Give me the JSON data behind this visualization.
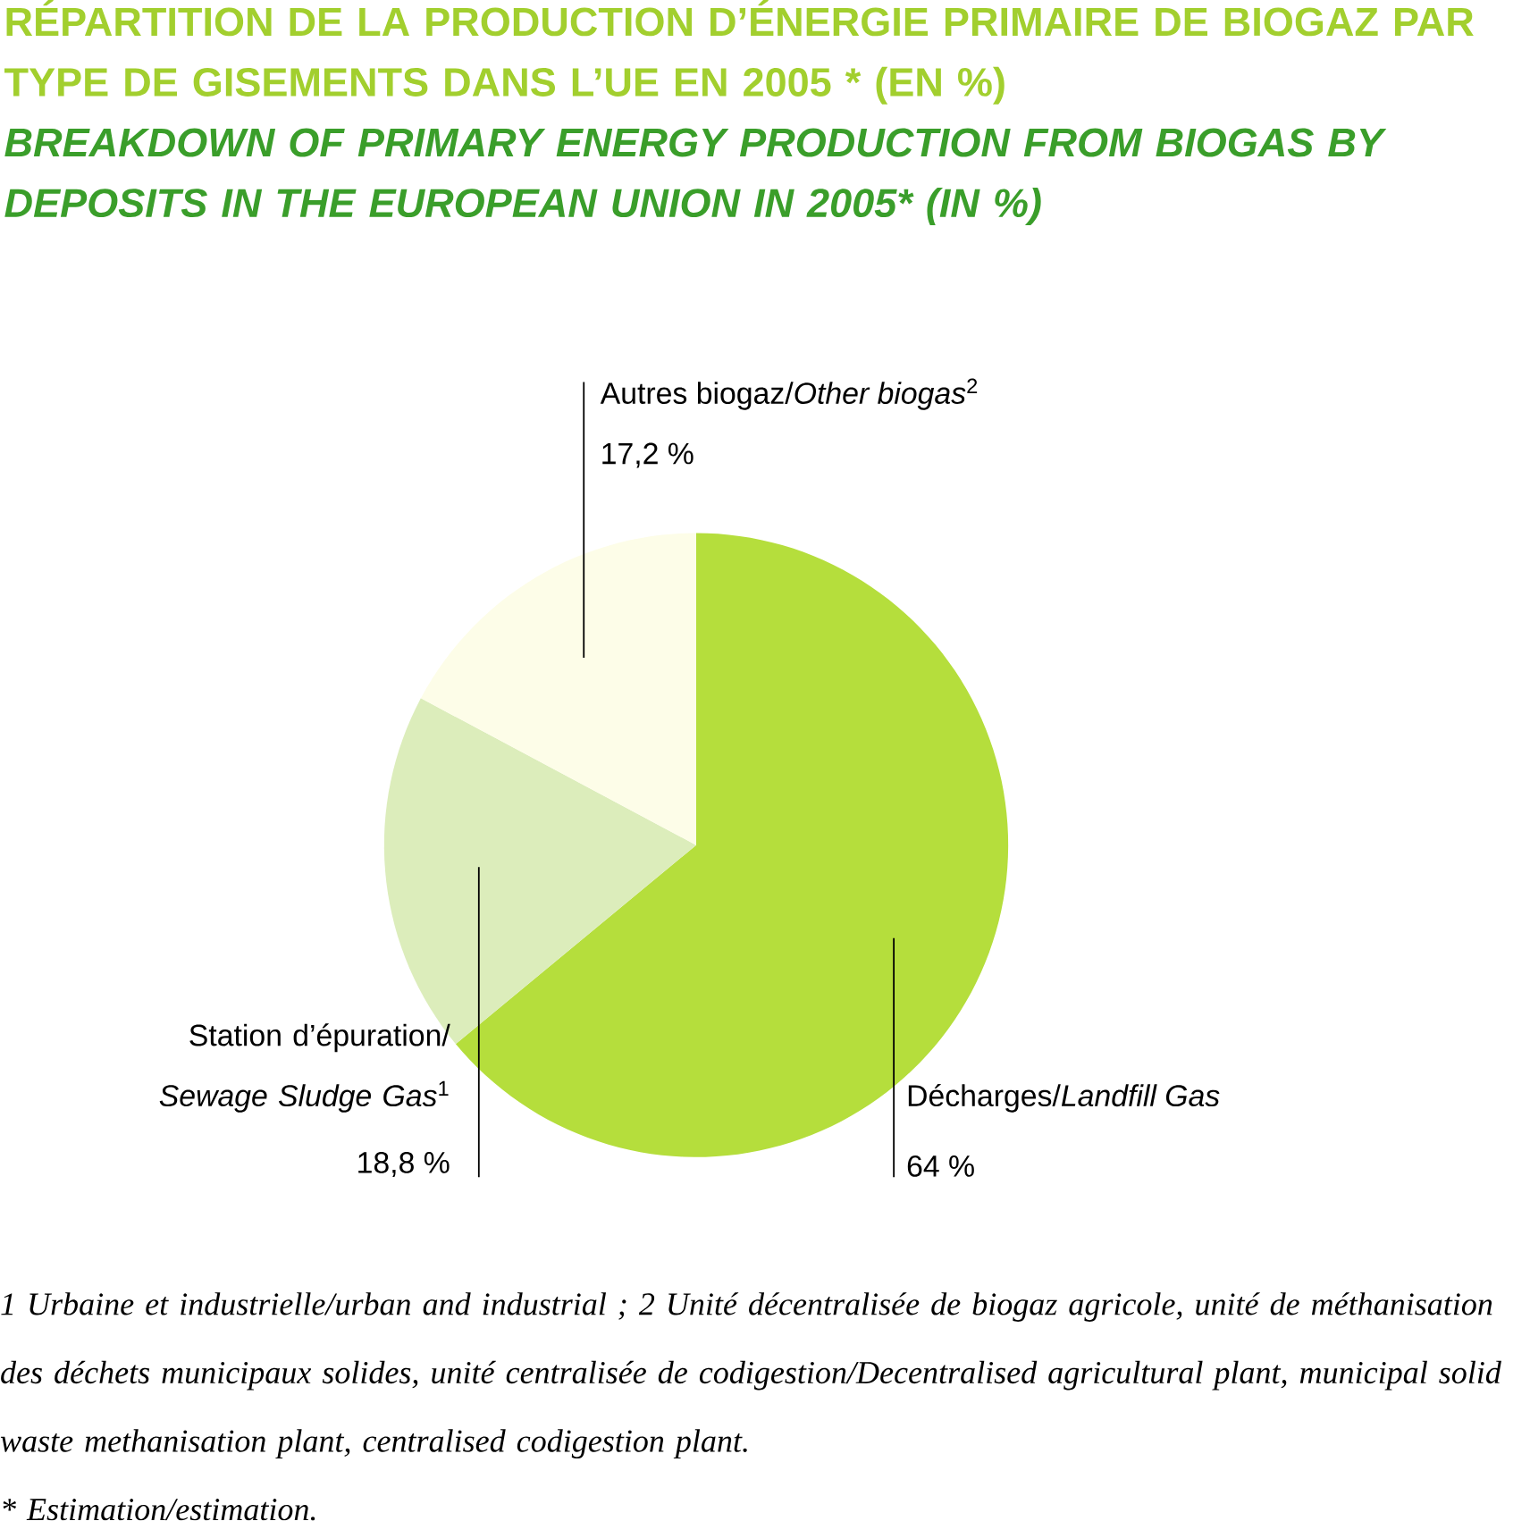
{
  "chart_data": {
    "type": "pie",
    "title": "RÉPARTITION DE LA PRODUCTION D’ÉNERGIE PRIMAIRE DE BIOGAZ PAR TYPE DE GISEMENTS DANS L’UE EN 2005 * (EN %)",
    "subtitle": "BREAKDOWN OF PRIMARY ENERGY PRODUCTION FROM BIOGAS BY DEPOSITS IN THE EUROPEAN UNION IN 2005* (IN %)",
    "categories": [
      "Décharges/*Landfill Gas*",
      "Station d’épuration/ *Sewage Sludge Gas*$^{1}$",
      "Autres biogaz/*Other biogas*$^{2}$"
    ],
    "values": [
      64,
      18.8,
      17.2
    ],
    "value_labels": [
      "64 %",
      "18,8 %",
      "17,2 %"
    ],
    "colors": [
      "#b5de3c",
      "#dcedbb",
      "#fdfde8"
    ],
    "annotations": [
      "1 Urbaine et industrielle/urban and industrial ; 2 Unité décentralisée de biogaz agricole, unité de méthanisation des déchets municipaux solides, unité centralisée de codigestion/Decentralised agricultural plant, municipal solid waste methanisation plant, centralised codigestion plant.",
      "* Estimation/estimation."
    ]
  }
}
